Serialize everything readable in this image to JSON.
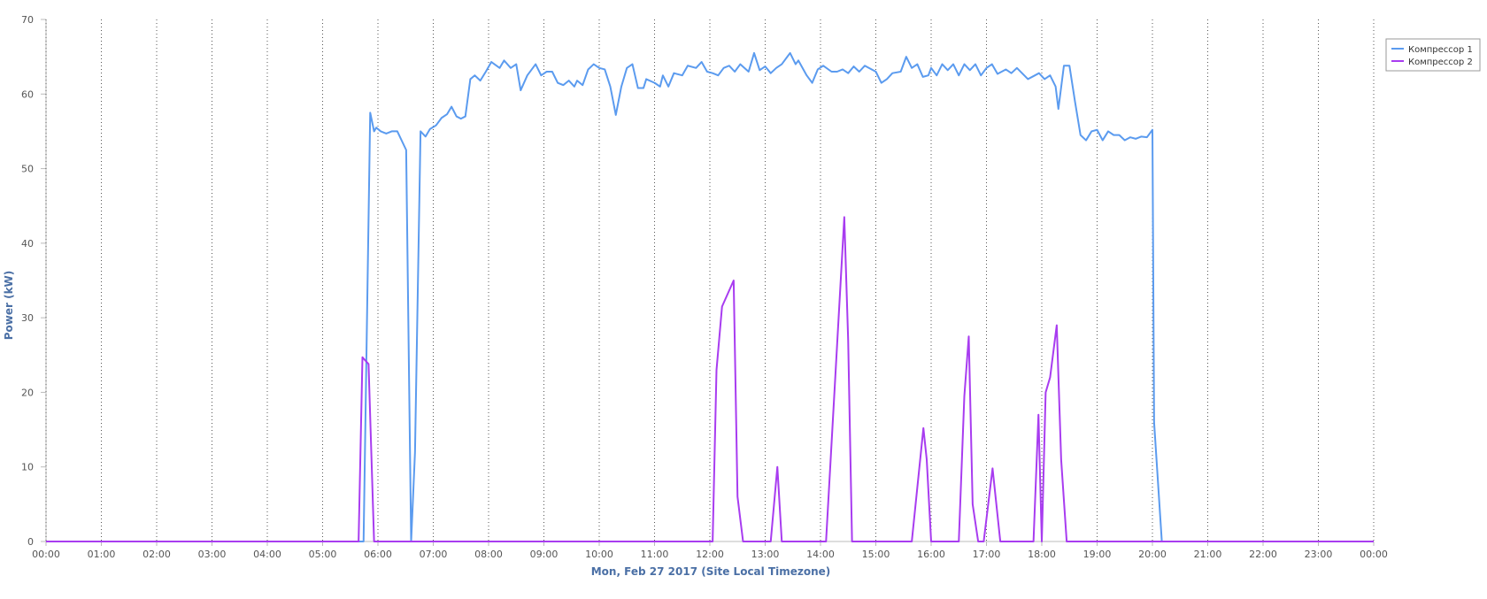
{
  "chart_data": {
    "type": "line",
    "ylabel": "Power (kW)",
    "xlabel": "Mon, Feb 27 2017 (Site Local Timezone)",
    "xlim": [
      0,
      24
    ],
    "ylim": [
      0,
      70
    ],
    "yticks": [
      0,
      10,
      20,
      30,
      40,
      50,
      60,
      70
    ],
    "xticks": [
      {
        "value": 0,
        "label": "00:00"
      },
      {
        "value": 1,
        "label": "01:00"
      },
      {
        "value": 2,
        "label": "02:00"
      },
      {
        "value": 3,
        "label": "03:00"
      },
      {
        "value": 4,
        "label": "04:00"
      },
      {
        "value": 5,
        "label": "05:00"
      },
      {
        "value": 6,
        "label": "06:00"
      },
      {
        "value": 7,
        "label": "07:00"
      },
      {
        "value": 8,
        "label": "08:00"
      },
      {
        "value": 9,
        "label": "09:00"
      },
      {
        "value": 10,
        "label": "10:00"
      },
      {
        "value": 11,
        "label": "11:00"
      },
      {
        "value": 12,
        "label": "12:00"
      },
      {
        "value": 13,
        "label": "13:00"
      },
      {
        "value": 14,
        "label": "14:00"
      },
      {
        "value": 15,
        "label": "15:00"
      },
      {
        "value": 16,
        "label": "16:00"
      },
      {
        "value": 17,
        "label": "17:00"
      },
      {
        "value": 18,
        "label": "18:00"
      },
      {
        "value": 19,
        "label": "19:00"
      },
      {
        "value": 20,
        "label": "20:00"
      },
      {
        "value": 21,
        "label": "21:00"
      },
      {
        "value": 22,
        "label": "22:00"
      },
      {
        "value": 23,
        "label": "23:00"
      },
      {
        "value": 24,
        "label": "00:00"
      }
    ],
    "grid": "x",
    "legend": "top-right",
    "series": [
      {
        "name": "Компрессор 1",
        "color": "#5b9bef",
        "x": [
          0,
          5.74,
          5.86,
          5.93,
          5.97,
          6.05,
          6.15,
          6.25,
          6.35,
          6.51,
          6.6,
          6.67,
          6.77,
          6.86,
          6.94,
          7.05,
          7.15,
          7.25,
          7.33,
          7.42,
          7.5,
          7.58,
          7.67,
          7.75,
          7.85,
          7.95,
          8.05,
          8.2,
          8.28,
          8.4,
          8.5,
          8.58,
          8.7,
          8.85,
          8.95,
          9.05,
          9.15,
          9.25,
          9.35,
          9.45,
          9.55,
          9.6,
          9.7,
          9.8,
          9.9,
          10.0,
          10.1,
          10.2,
          10.3,
          10.4,
          10.5,
          10.6,
          10.7,
          10.8,
          10.85,
          11.0,
          11.1,
          11.15,
          11.25,
          11.35,
          11.5,
          11.6,
          11.75,
          11.85,
          11.95,
          12.05,
          12.15,
          12.25,
          12.35,
          12.45,
          12.55,
          12.7,
          12.8,
          12.9,
          13.0,
          13.1,
          13.2,
          13.3,
          13.45,
          13.55,
          13.6,
          13.75,
          13.85,
          13.95,
          14.05,
          14.2,
          14.3,
          14.4,
          14.5,
          14.6,
          14.7,
          14.8,
          15.0,
          15.1,
          15.2,
          15.3,
          15.45,
          15.55,
          15.65,
          15.75,
          15.85,
          15.95,
          16.0,
          16.1,
          16.2,
          16.3,
          16.4,
          16.5,
          16.6,
          16.7,
          16.8,
          16.9,
          17.0,
          17.1,
          17.2,
          17.35,
          17.45,
          17.55,
          17.75,
          17.85,
          17.95,
          18.05,
          18.15,
          18.25,
          18.3,
          18.4,
          18.5,
          18.6,
          18.7,
          18.8,
          18.9,
          19.0,
          19.1,
          19.2,
          19.3,
          19.4,
          19.5,
          19.6,
          19.7,
          19.8,
          19.9,
          20.0,
          20.03,
          20.17,
          24
        ],
        "values": [
          0,
          0,
          57.5,
          55,
          55.5,
          55,
          54.7,
          55,
          55,
          52.5,
          0,
          12,
          55,
          54.3,
          55.3,
          55.8,
          56.8,
          57.3,
          58.3,
          57,
          56.7,
          57,
          62,
          62.5,
          61.8,
          63,
          64.3,
          63.5,
          64.5,
          63.5,
          64,
          60.5,
          62.5,
          64,
          62.5,
          63,
          63,
          61.5,
          61.2,
          61.8,
          61,
          61.8,
          61.2,
          63.3,
          64,
          63.5,
          63.3,
          61,
          57.2,
          61,
          63.5,
          64,
          60.8,
          60.8,
          62,
          61.5,
          61,
          62.5,
          61,
          62.8,
          62.5,
          63.8,
          63.5,
          64.3,
          63,
          62.8,
          62.5,
          63.5,
          63.8,
          63,
          64,
          63,
          65.5,
          63.2,
          63.7,
          62.8,
          63.5,
          64,
          65.5,
          64,
          64.5,
          62.5,
          61.5,
          63.3,
          63.8,
          63,
          63,
          63.3,
          62.8,
          63.7,
          63,
          63.8,
          63,
          61.5,
          62,
          62.8,
          63,
          65,
          63.5,
          64,
          62.3,
          62.5,
          63.5,
          62.5,
          64,
          63.2,
          64,
          62.5,
          64,
          63.2,
          64,
          62.5,
          63.5,
          64,
          62.7,
          63.3,
          62.8,
          63.5,
          62,
          62.4,
          62.8,
          62,
          62.5,
          61,
          58,
          63.8,
          63.8,
          59,
          54.5,
          53.8,
          55,
          55.2,
          53.8,
          55,
          54.5,
          54.5,
          53.8,
          54.2,
          54,
          54.3,
          54.2,
          55.2,
          16,
          0,
          0
        ]
      },
      {
        "name": "Компрессор 2",
        "color": "#a83cf0",
        "x": [
          0,
          5.65,
          5.72,
          5.83,
          5.93,
          12.05,
          12.12,
          12.22,
          12.43,
          12.5,
          12.6,
          13.1,
          13.22,
          13.3,
          14.1,
          14.43,
          14.5,
          14.57,
          15.65,
          15.86,
          15.92,
          16.0,
          16.5,
          16.6,
          16.68,
          16.75,
          16.85,
          16.95,
          17.11,
          17.25,
          17.85,
          17.94,
          18.0,
          18.07,
          18.15,
          18.27,
          18.35,
          18.45,
          24
        ],
        "values": [
          0,
          0,
          24.7,
          23.8,
          0,
          0,
          23,
          31.5,
          35,
          6,
          0,
          0,
          10,
          0,
          0,
          43.5,
          27,
          0,
          0,
          15.2,
          11,
          0,
          0,
          19.5,
          27.5,
          5,
          0,
          0,
          9.8,
          0,
          0,
          17,
          0,
          20,
          22,
          29,
          11,
          0,
          0
        ]
      }
    ]
  }
}
